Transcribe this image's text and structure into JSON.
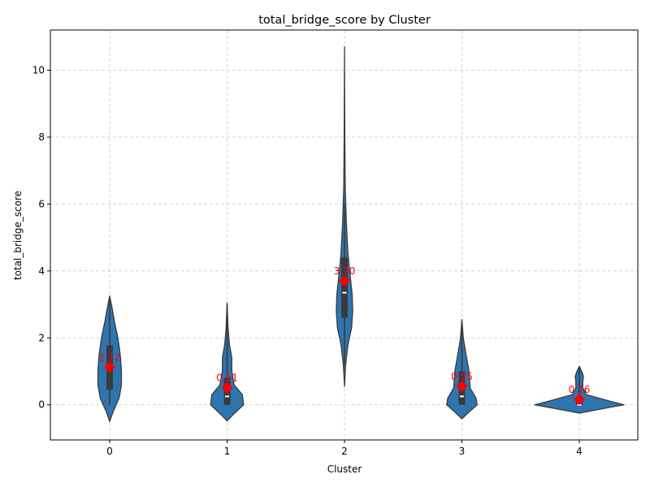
{
  "chart_data": {
    "type": "violin",
    "title": "total_bridge_score by Cluster",
    "xlabel": "Cluster",
    "ylabel": "total_bridge_score",
    "categories": [
      "0",
      "1",
      "2",
      "3",
      "4"
    ],
    "ylim": [
      -1.05,
      11.2
    ],
    "yticks": [
      0,
      2,
      4,
      6,
      8,
      10
    ],
    "grid": true,
    "violin_color": "#2e75b0",
    "edge_color": "#3a3a3a",
    "box_color": "#3a3a3a",
    "mean_marker_color": "#ff0000",
    "violins": [
      {
        "category": "0",
        "extent": [
          -0.5,
          3.25
        ],
        "q1": 0.45,
        "median": 1.05,
        "q3": 1.78,
        "whisker_low": 0.0,
        "whisker_high": 3.2,
        "mean": 1.12,
        "mean_label": "1.12",
        "profile": [
          [
            -0.5,
            0.0
          ],
          [
            -0.2,
            0.03
          ],
          [
            0.2,
            0.08
          ],
          [
            0.6,
            0.1
          ],
          [
            1.0,
            0.1
          ],
          [
            1.5,
            0.09
          ],
          [
            2.0,
            0.07
          ],
          [
            2.5,
            0.04
          ],
          [
            2.9,
            0.02
          ],
          [
            3.25,
            0.0
          ]
        ]
      },
      {
        "category": "1",
        "extent": [
          -0.48,
          3.05
        ],
        "q1": 0.0,
        "median": 0.25,
        "q3": 0.8,
        "whisker_low": 0.0,
        "whisker_high": 3.0,
        "mean": 0.51,
        "mean_label": "0.51",
        "profile": [
          [
            -0.48,
            0.0
          ],
          [
            -0.3,
            0.05
          ],
          [
            0.0,
            0.14
          ],
          [
            0.3,
            0.13
          ],
          [
            0.6,
            0.06
          ],
          [
            1.0,
            0.04
          ],
          [
            1.4,
            0.04
          ],
          [
            1.8,
            0.02
          ],
          [
            2.3,
            0.008
          ],
          [
            3.05,
            0.0
          ]
        ]
      },
      {
        "category": "2",
        "extent": [
          0.55,
          10.7
        ],
        "q1": 2.6,
        "median": 3.35,
        "q3": 4.4,
        "whisker_low": 1.2,
        "whisker_high": 6.0,
        "mean": 3.7,
        "mean_label": "3.70",
        "profile": [
          [
            0.55,
            0.0
          ],
          [
            1.2,
            0.01
          ],
          [
            1.8,
            0.03
          ],
          [
            2.3,
            0.06
          ],
          [
            2.8,
            0.07
          ],
          [
            3.3,
            0.065
          ],
          [
            3.8,
            0.05
          ],
          [
            4.5,
            0.03
          ],
          [
            5.5,
            0.015
          ],
          [
            6.5,
            0.006
          ],
          [
            8.0,
            0.003
          ],
          [
            10.7,
            0.0
          ]
        ]
      },
      {
        "category": "3",
        "extent": [
          -0.42,
          2.55
        ],
        "q1": 0.0,
        "median": 0.25,
        "q3": 1.0,
        "whisker_low": 0.0,
        "whisker_high": 2.5,
        "mean": 0.55,
        "mean_label": "0.55",
        "profile": [
          [
            -0.42,
            0.0
          ],
          [
            -0.25,
            0.05
          ],
          [
            0.0,
            0.13
          ],
          [
            0.2,
            0.12
          ],
          [
            0.5,
            0.07
          ],
          [
            1.0,
            0.06
          ],
          [
            1.5,
            0.035
          ],
          [
            2.0,
            0.012
          ],
          [
            2.55,
            0.0
          ]
        ]
      },
      {
        "category": "4",
        "extent": [
          -0.25,
          1.15
        ],
        "q1": 0.0,
        "median": 0.0,
        "q3": 0.1,
        "whisker_low": 0.0,
        "whisker_high": 1.1,
        "mean": 0.16,
        "mean_label": "0.16",
        "profile": [
          [
            -0.25,
            0.0
          ],
          [
            -0.15,
            0.15
          ],
          [
            0.0,
            0.38
          ],
          [
            0.1,
            0.27
          ],
          [
            0.3,
            0.06
          ],
          [
            0.5,
            0.03
          ],
          [
            0.7,
            0.03
          ],
          [
            0.85,
            0.035
          ],
          [
            1.0,
            0.02
          ],
          [
            1.15,
            0.0
          ]
        ]
      }
    ]
  }
}
